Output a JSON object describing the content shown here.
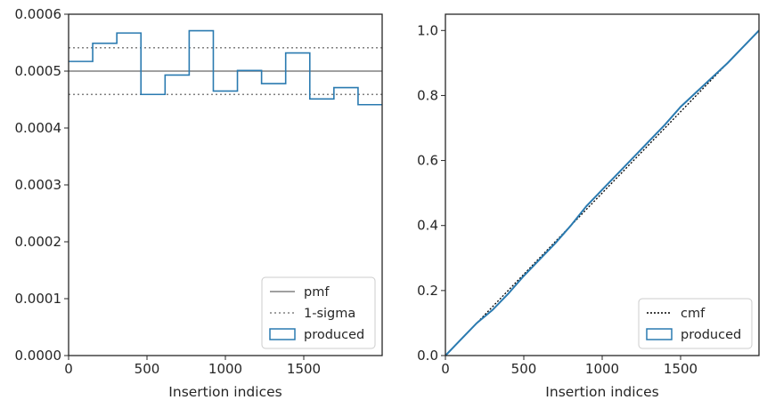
{
  "chart_data": [
    {
      "type": "step",
      "xlabel": "Insertion indices",
      "ylabel": "",
      "xlim": [
        0,
        2000
      ],
      "ylim": [
        0,
        0.0006
      ],
      "x_ticks": [
        0,
        500,
        1000,
        1500
      ],
      "x_tick_labels": [
        "0",
        "500",
        "1000",
        "1500"
      ],
      "y_ticks": [
        0,
        0.0001,
        0.0002,
        0.0003,
        0.0004,
        0.0005,
        0.0006
      ],
      "y_tick_labels": [
        "0.0000",
        "0.0001",
        "0.0002",
        "0.0003",
        "0.0004",
        "0.0005",
        "0.0006"
      ],
      "legend_position": "lower-right",
      "pmf": {
        "name": "pmf",
        "value": 0.0005,
        "color": "#808080"
      },
      "sigma": {
        "name": "1-sigma",
        "values": [
          0.000459,
          0.000541
        ],
        "color": "#808080"
      },
      "produced": {
        "name": "produced",
        "color": "#2a7ab0",
        "bin_edges": [
          0,
          153.8,
          307.7,
          461.5,
          615.4,
          769.2,
          923.1,
          1076.9,
          1230.8,
          1384.6,
          1538.5,
          1692.3,
          1846.2,
          2000
        ],
        "values": [
          0.000517,
          0.000549,
          0.000567,
          0.000459,
          0.000493,
          0.000571,
          0.000465,
          0.000501,
          0.000478,
          0.000532,
          0.000451,
          0.000471,
          0.000441
        ]
      }
    },
    {
      "type": "line",
      "xlabel": "Insertion indices",
      "ylabel": "",
      "xlim": [
        0,
        2000
      ],
      "ylim": [
        0,
        1.05
      ],
      "x_ticks": [
        0,
        500,
        1000,
        1500
      ],
      "x_tick_labels": [
        "0",
        "500",
        "1000",
        "1500"
      ],
      "y_ticks": [
        0,
        0.2,
        0.4,
        0.6,
        0.8,
        1.0
      ],
      "y_tick_labels": [
        "0.0",
        "0.2",
        "0.4",
        "0.6",
        "0.8",
        "1.0"
      ],
      "legend_position": "lower-right",
      "cmf": {
        "name": "cmf",
        "x": [
          0,
          2000
        ],
        "y": [
          0,
          1
        ],
        "color": "#000000"
      },
      "produced": {
        "name": "produced",
        "color": "#2a7ab0",
        "x": [
          0,
          100,
          200,
          300,
          400,
          500,
          600,
          700,
          800,
          900,
          1000,
          1100,
          1200,
          1300,
          1400,
          1500,
          1600,
          1700,
          1800,
          1900,
          2000
        ],
        "y": [
          0,
          0.05,
          0.1,
          0.14,
          0.19,
          0.245,
          0.295,
          0.345,
          0.4,
          0.46,
          0.51,
          0.56,
          0.61,
          0.66,
          0.71,
          0.765,
          0.81,
          0.855,
          0.9,
          0.95,
          1.0
        ]
      }
    }
  ]
}
